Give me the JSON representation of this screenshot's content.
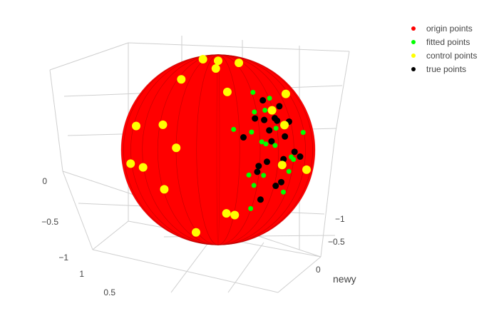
{
  "chart_data": {
    "type": "scatter",
    "subtype": "scatter3d",
    "title": "",
    "axes": {
      "z": {
        "title": "",
        "ticks": [
          "−1",
          "−0.5",
          "0"
        ]
      },
      "y": {
        "title": "newy",
        "ticks": [
          "0",
          "−0.5",
          "−1"
        ]
      },
      "x": {
        "title": "",
        "ticks": [
          "1",
          "0.5"
        ]
      },
      "range": [
        -1,
        1
      ],
      "grid": true
    },
    "legend": {
      "placement": "top-right",
      "items": [
        {
          "name": "origin points",
          "color": "#ff0000"
        },
        {
          "name": "fitted points",
          "color": "#00ff00"
        },
        {
          "name": "control points",
          "color": "#ffff00"
        },
        {
          "name": "true points",
          "color": "#000000"
        }
      ]
    },
    "series": [
      {
        "name": "origin points",
        "color": "#ff0000",
        "shape": "sphere",
        "center": [
          0,
          0,
          0
        ],
        "radius": 1
      },
      {
        "name": "fitted points",
        "color": "#00ff00",
        "points": [
          [
            0.2,
            -0.4,
            0.1
          ],
          [
            0.5,
            -0.2,
            -0.3
          ],
          [
            0.1,
            -0.6,
            0.2
          ],
          [
            -0.2,
            -0.4,
            -0.4
          ],
          [
            0.6,
            -0.3,
            0.2
          ],
          [
            0.3,
            -0.7,
            -0.1
          ],
          [
            -0.1,
            -0.6,
            0.5
          ],
          [
            0.4,
            -0.2,
            -0.6
          ],
          [
            0.7,
            -0.1,
            0.4
          ],
          [
            0.1,
            -0.8,
            -0.2
          ],
          [
            -0.3,
            -0.5,
            0.3
          ],
          [
            0.5,
            -0.6,
            -0.2
          ],
          [
            0.2,
            -0.3,
            0.7
          ],
          [
            0.6,
            -0.5,
            -0.4
          ],
          [
            -0.2,
            -0.7,
            -0.1
          ],
          [
            0.3,
            -0.4,
            0.5
          ],
          [
            0.8,
            -0.2,
            -0.1
          ],
          [
            0.4,
            -0.8,
            0.2
          ],
          [
            -0.4,
            -0.3,
            0.1
          ],
          [
            0.2,
            -0.9,
            -0.3
          ]
        ]
      },
      {
        "name": "control points",
        "color": "#ffff00",
        "points": [
          [
            0.9,
            -0.4,
            0.0
          ],
          [
            -0.9,
            0.3,
            0.1
          ],
          [
            0.6,
            0.7,
            0.3
          ],
          [
            -0.5,
            -0.8,
            0.2
          ],
          [
            0.0,
            0.0,
            1.05
          ],
          [
            0.2,
            0.1,
            1.03
          ],
          [
            -0.2,
            0.1,
            1.03
          ],
          [
            0.1,
            -0.2,
            1.02
          ],
          [
            0.0,
            1.0,
            0.0
          ],
          [
            0.3,
            -0.9,
            -0.3
          ],
          [
            -0.7,
            0.6,
            -0.3
          ],
          [
            0.8,
            0.2,
            -0.5
          ],
          [
            -0.3,
            -0.3,
            -0.9
          ],
          [
            0.4,
            0.4,
            -0.8
          ],
          [
            0.7,
            -0.5,
            0.4
          ],
          [
            -0.8,
            -0.4,
            0.4
          ],
          [
            0.5,
            0.8,
            -0.2
          ],
          [
            -0.6,
            0.2,
            0.7
          ],
          [
            0.2,
            -0.7,
            0.6
          ],
          [
            -0.1,
            0.9,
            0.4
          ]
        ]
      },
      {
        "name": "true points",
        "color": "#000000",
        "points": [
          [
            0.3,
            -0.5,
            0.1
          ],
          [
            0.4,
            -0.3,
            -0.2
          ],
          [
            0.2,
            -0.6,
            0.3
          ],
          [
            -0.1,
            -0.5,
            -0.3
          ],
          [
            0.5,
            -0.4,
            0.3
          ],
          [
            0.4,
            -0.6,
            -0.1
          ],
          [
            0.0,
            -0.7,
            0.4
          ],
          [
            0.5,
            -0.3,
            -0.5
          ],
          [
            0.6,
            -0.2,
            0.5
          ],
          [
            0.2,
            -0.8,
            -0.1
          ],
          [
            -0.2,
            -0.6,
            0.2
          ],
          [
            0.6,
            -0.5,
            -0.3
          ],
          [
            0.3,
            -0.4,
            0.6
          ],
          [
            0.7,
            -0.4,
            -0.3
          ],
          [
            -0.1,
            -0.8,
            0.0
          ],
          [
            0.4,
            -0.5,
            0.4
          ],
          [
            0.7,
            -0.3,
            0.0
          ],
          [
            0.3,
            -0.7,
            0.3
          ],
          [
            -0.3,
            -0.4,
            0.0
          ],
          [
            0.1,
            -0.9,
            -0.2
          ]
        ]
      }
    ]
  }
}
